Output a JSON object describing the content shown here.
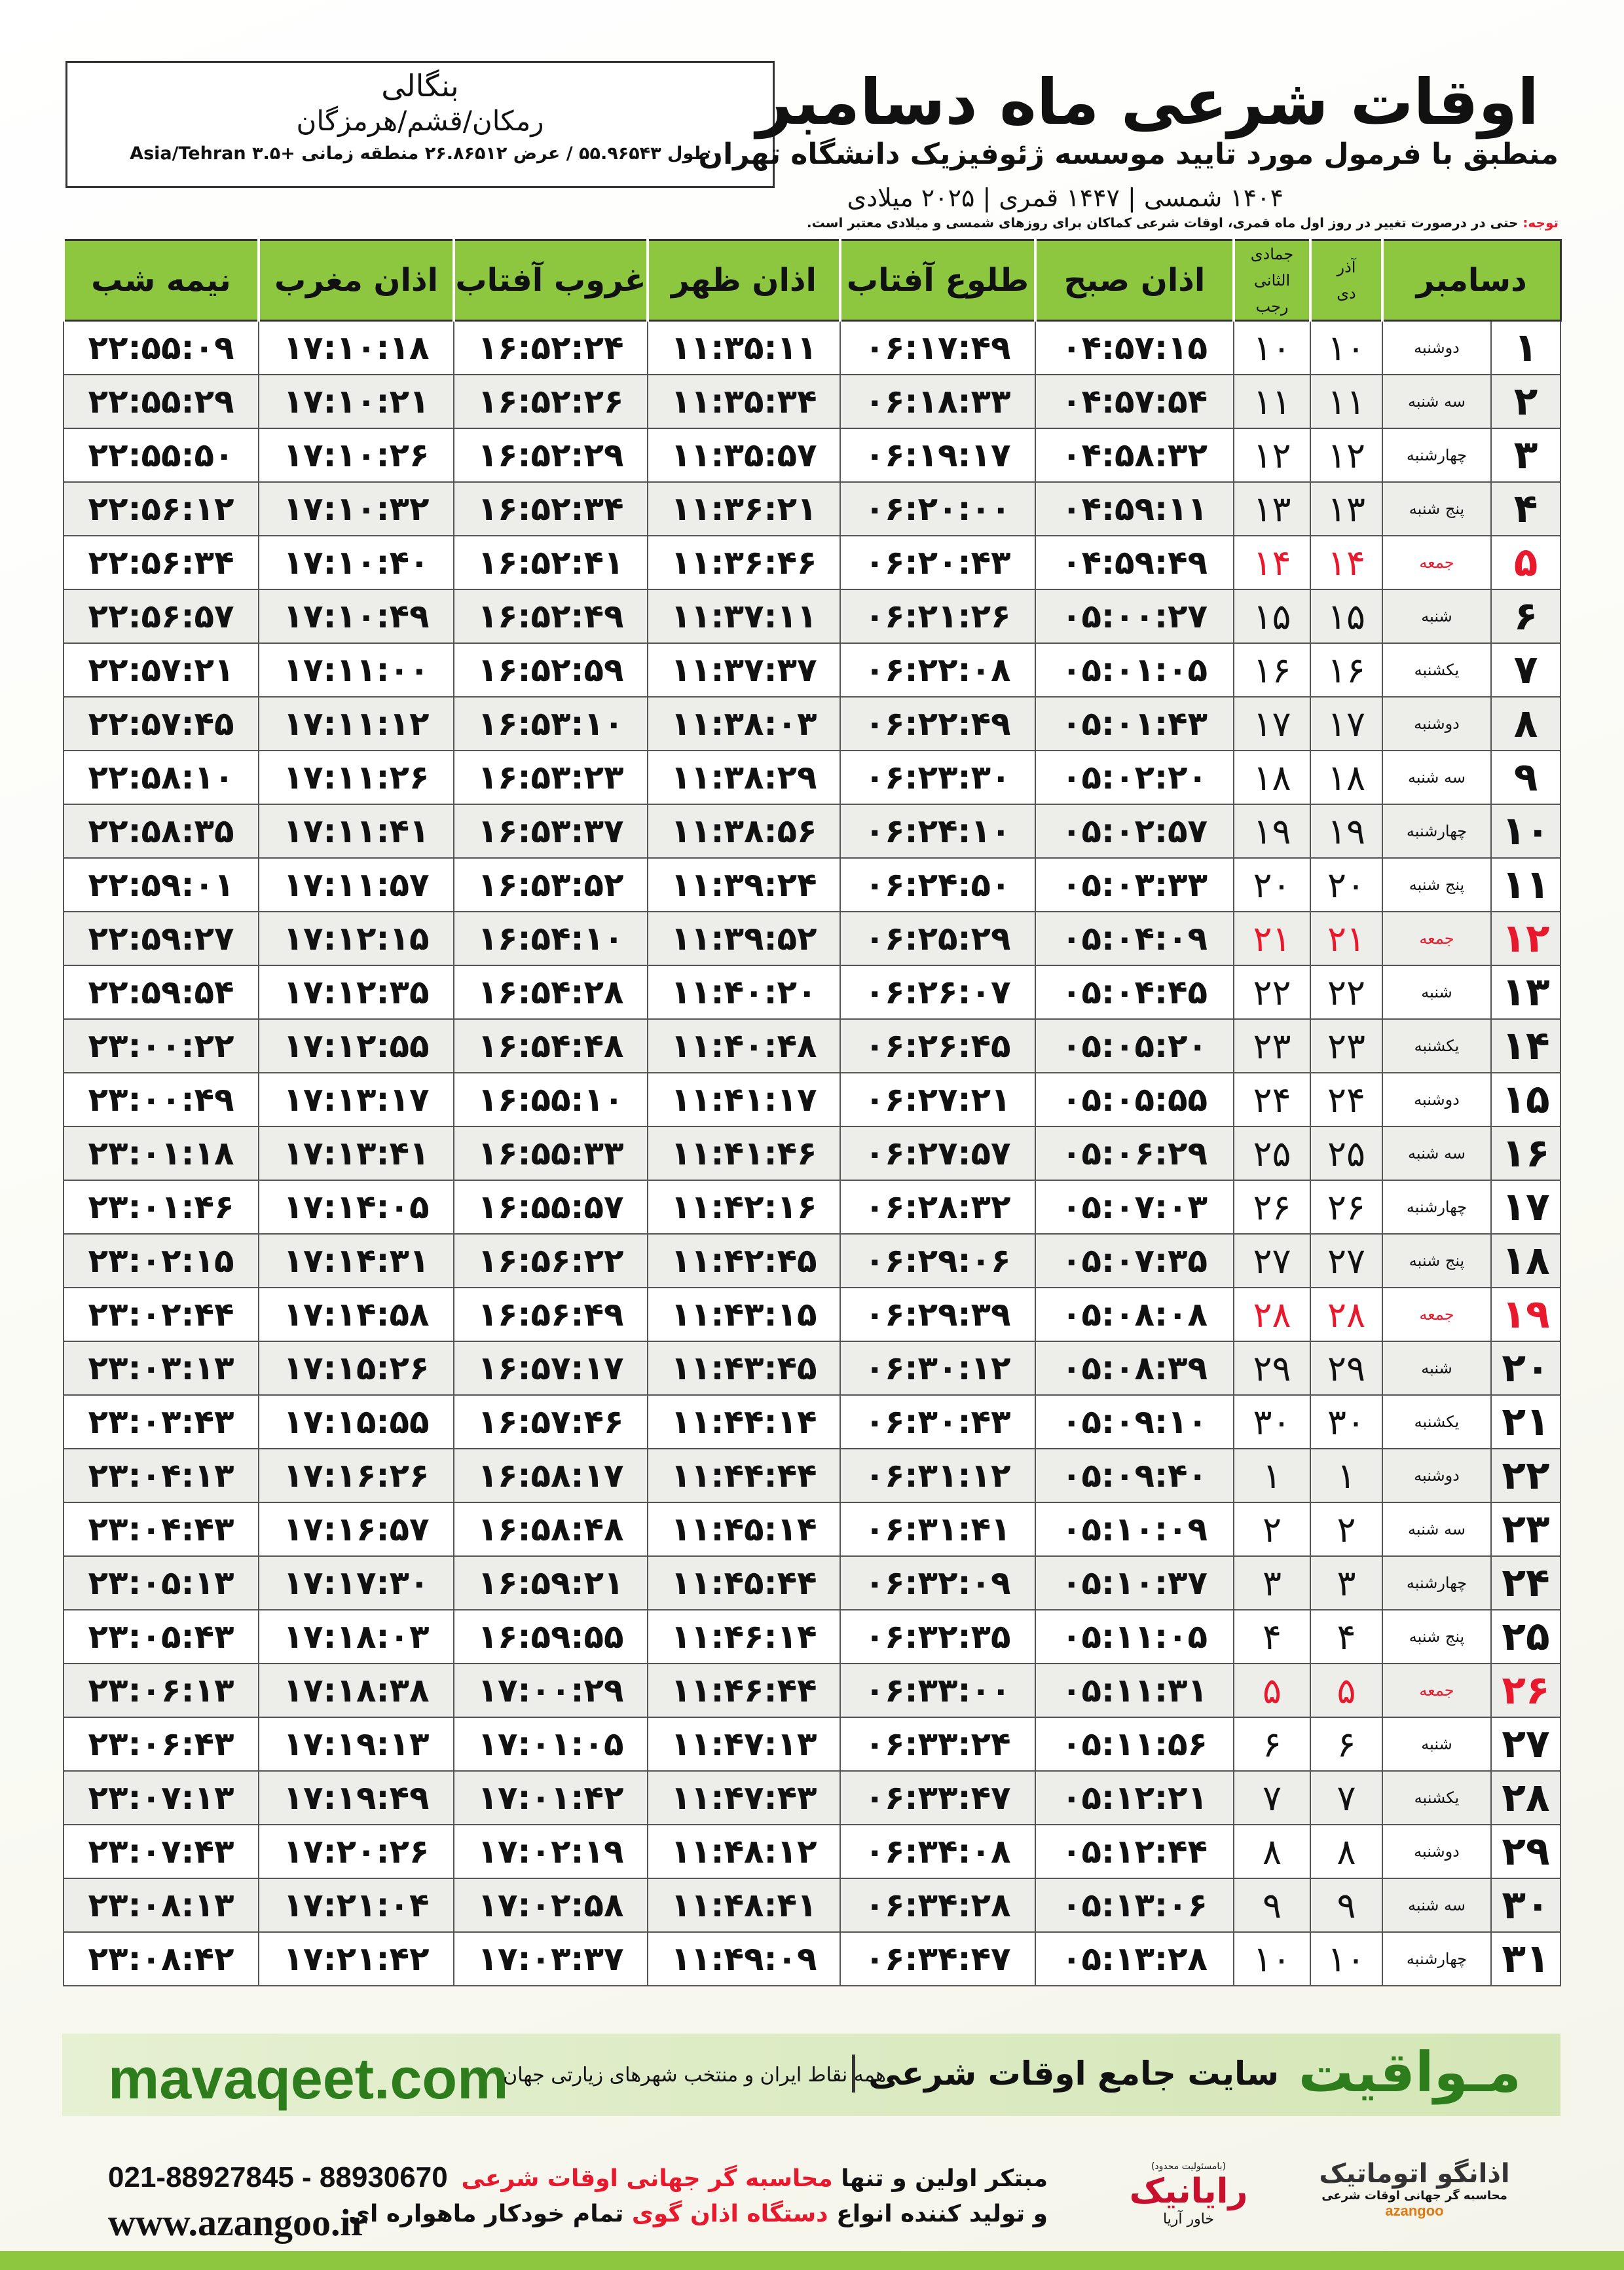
{
  "location": {
    "name": "بنگالی",
    "region": "رمکان/قشم/هرمزگان",
    "coords": "طول ۵۵.۹۶۵۴۳ / عرض ۲۶.۸۶۵۱۲ منطقه زمانی +۳.۵ Asia/Tehran"
  },
  "header": {
    "title": "اوقات شرعی ماه دسامبر",
    "subtitle": "منطبق با فرمول مورد تایید موسسه ژئوفیزیک دانشگاه تهران",
    "dates": "۱۴۰۴ شمسی | ۱۴۴۷ قمری | ۲۰۲۵ میلادی"
  },
  "note": {
    "label": "توجه:",
    "text": "حتی در درصورت تغییر در روز اول ماه قمری، اوقات شرعی کماکان برای روزهای شمسی و میلادی معتبر است."
  },
  "table": {
    "columns": {
      "month": "دسامبر",
      "hijri_top": [
        "آذر",
        "جمادی الثانی"
      ],
      "hijri_bottom": [
        "دی",
        "رجب"
      ],
      "times": [
        "اذان صبح",
        "طلوع آفتاب",
        "اذان ظهر",
        "غروب آفتاب",
        "اذان مغرب",
        "نیمه شب"
      ]
    },
    "holiday_color": "#e8192c",
    "rows": [
      {
        "day": "۱",
        "weekday": "دوشنبه",
        "dey": "۱۰",
        "rajab": "۱۰",
        "times": [
          "۰۴:۵۷:۱۵",
          "۰۶:۱۷:۴۹",
          "۱۱:۳۵:۱۱",
          "۱۶:۵۲:۲۴",
          "۱۷:۱۰:۱۸",
          "۲۲:۵۵:۰۹"
        ],
        "holiday": false
      },
      {
        "day": "۲",
        "weekday": "سه شنبه",
        "dey": "۱۱",
        "rajab": "۱۱",
        "times": [
          "۰۴:۵۷:۵۴",
          "۰۶:۱۸:۳۳",
          "۱۱:۳۵:۳۴",
          "۱۶:۵۲:۲۶",
          "۱۷:۱۰:۲۱",
          "۲۲:۵۵:۲۹"
        ],
        "holiday": false
      },
      {
        "day": "۳",
        "weekday": "چهارشنبه",
        "dey": "۱۲",
        "rajab": "۱۲",
        "times": [
          "۰۴:۵۸:۳۲",
          "۰۶:۱۹:۱۷",
          "۱۱:۳۵:۵۷",
          "۱۶:۵۲:۲۹",
          "۱۷:۱۰:۲۶",
          "۲۲:۵۵:۵۰"
        ],
        "holiday": false
      },
      {
        "day": "۴",
        "weekday": "پنج شنبه",
        "dey": "۱۳",
        "rajab": "۱۳",
        "times": [
          "۰۴:۵۹:۱۱",
          "۰۶:۲۰:۰۰",
          "۱۱:۳۶:۲۱",
          "۱۶:۵۲:۳۴",
          "۱۷:۱۰:۳۲",
          "۲۲:۵۶:۱۲"
        ],
        "holiday": false
      },
      {
        "day": "۵",
        "weekday": "جمعه",
        "dey": "۱۴",
        "rajab": "۱۴",
        "times": [
          "۰۴:۵۹:۴۹",
          "۰۶:۲۰:۴۳",
          "۱۱:۳۶:۴۶",
          "۱۶:۵۲:۴۱",
          "۱۷:۱۰:۴۰",
          "۲۲:۵۶:۳۴"
        ],
        "holiday": true
      },
      {
        "day": "۶",
        "weekday": "شنبه",
        "dey": "۱۵",
        "rajab": "۱۵",
        "times": [
          "۰۵:۰۰:۲۷",
          "۰۶:۲۱:۲۶",
          "۱۱:۳۷:۱۱",
          "۱۶:۵۲:۴۹",
          "۱۷:۱۰:۴۹",
          "۲۲:۵۶:۵۷"
        ],
        "holiday": false
      },
      {
        "day": "۷",
        "weekday": "یکشنبه",
        "dey": "۱۶",
        "rajab": "۱۶",
        "times": [
          "۰۵:۰۱:۰۵",
          "۰۶:۲۲:۰۸",
          "۱۱:۳۷:۳۷",
          "۱۶:۵۲:۵۹",
          "۱۷:۱۱:۰۰",
          "۲۲:۵۷:۲۱"
        ],
        "holiday": false
      },
      {
        "day": "۸",
        "weekday": "دوشنبه",
        "dey": "۱۷",
        "rajab": "۱۷",
        "times": [
          "۰۵:۰۱:۴۳",
          "۰۶:۲۲:۴۹",
          "۱۱:۳۸:۰۳",
          "۱۶:۵۳:۱۰",
          "۱۷:۱۱:۱۲",
          "۲۲:۵۷:۴۵"
        ],
        "holiday": false
      },
      {
        "day": "۹",
        "weekday": "سه شنبه",
        "dey": "۱۸",
        "rajab": "۱۸",
        "times": [
          "۰۵:۰۲:۲۰",
          "۰۶:۲۳:۳۰",
          "۱۱:۳۸:۲۹",
          "۱۶:۵۳:۲۳",
          "۱۷:۱۱:۲۶",
          "۲۲:۵۸:۱۰"
        ],
        "holiday": false
      },
      {
        "day": "۱۰",
        "weekday": "چهارشنبه",
        "dey": "۱۹",
        "rajab": "۱۹",
        "times": [
          "۰۵:۰۲:۵۷",
          "۰۶:۲۴:۱۰",
          "۱۱:۳۸:۵۶",
          "۱۶:۵۳:۳۷",
          "۱۷:۱۱:۴۱",
          "۲۲:۵۸:۳۵"
        ],
        "holiday": false
      },
      {
        "day": "۱۱",
        "weekday": "پنج شنبه",
        "dey": "۲۰",
        "rajab": "۲۰",
        "times": [
          "۰۵:۰۳:۳۳",
          "۰۶:۲۴:۵۰",
          "۱۱:۳۹:۲۴",
          "۱۶:۵۳:۵۲",
          "۱۷:۱۱:۵۷",
          "۲۲:۵۹:۰۱"
        ],
        "holiday": false
      },
      {
        "day": "۱۲",
        "weekday": "جمعه",
        "dey": "۲۱",
        "rajab": "۲۱",
        "times": [
          "۰۵:۰۴:۰۹",
          "۰۶:۲۵:۲۹",
          "۱۱:۳۹:۵۲",
          "۱۶:۵۴:۱۰",
          "۱۷:۱۲:۱۵",
          "۲۲:۵۹:۲۷"
        ],
        "holiday": true
      },
      {
        "day": "۱۳",
        "weekday": "شنبه",
        "dey": "۲۲",
        "rajab": "۲۲",
        "times": [
          "۰۵:۰۴:۴۵",
          "۰۶:۲۶:۰۷",
          "۱۱:۴۰:۲۰",
          "۱۶:۵۴:۲۸",
          "۱۷:۱۲:۳۵",
          "۲۲:۵۹:۵۴"
        ],
        "holiday": false
      },
      {
        "day": "۱۴",
        "weekday": "یکشنبه",
        "dey": "۲۳",
        "rajab": "۲۳",
        "times": [
          "۰۵:۰۵:۲۰",
          "۰۶:۲۶:۴۵",
          "۱۱:۴۰:۴۸",
          "۱۶:۵۴:۴۸",
          "۱۷:۱۲:۵۵",
          "۲۳:۰۰:۲۲"
        ],
        "holiday": false
      },
      {
        "day": "۱۵",
        "weekday": "دوشنبه",
        "dey": "۲۴",
        "rajab": "۲۴",
        "times": [
          "۰۵:۰۵:۵۵",
          "۰۶:۲۷:۲۱",
          "۱۱:۴۱:۱۷",
          "۱۶:۵۵:۱۰",
          "۱۷:۱۳:۱۷",
          "۲۳:۰۰:۴۹"
        ],
        "holiday": false
      },
      {
        "day": "۱۶",
        "weekday": "سه شنبه",
        "dey": "۲۵",
        "rajab": "۲۵",
        "times": [
          "۰۵:۰۶:۲۹",
          "۰۶:۲۷:۵۷",
          "۱۱:۴۱:۴۶",
          "۱۶:۵۵:۳۳",
          "۱۷:۱۳:۴۱",
          "۲۳:۰۱:۱۸"
        ],
        "holiday": false
      },
      {
        "day": "۱۷",
        "weekday": "چهارشنبه",
        "dey": "۲۶",
        "rajab": "۲۶",
        "times": [
          "۰۵:۰۷:۰۳",
          "۰۶:۲۸:۳۲",
          "۱۱:۴۲:۱۶",
          "۱۶:۵۵:۵۷",
          "۱۷:۱۴:۰۵",
          "۲۳:۰۱:۴۶"
        ],
        "holiday": false
      },
      {
        "day": "۱۸",
        "weekday": "پنج شنبه",
        "dey": "۲۷",
        "rajab": "۲۷",
        "times": [
          "۰۵:۰۷:۳۵",
          "۰۶:۲۹:۰۶",
          "۱۱:۴۲:۴۵",
          "۱۶:۵۶:۲۲",
          "۱۷:۱۴:۳۱",
          "۲۳:۰۲:۱۵"
        ],
        "holiday": false
      },
      {
        "day": "۱۹",
        "weekday": "جمعه",
        "dey": "۲۸",
        "rajab": "۲۸",
        "times": [
          "۰۵:۰۸:۰۸",
          "۰۶:۲۹:۳۹",
          "۱۱:۴۳:۱۵",
          "۱۶:۵۶:۴۹",
          "۱۷:۱۴:۵۸",
          "۲۳:۰۲:۴۴"
        ],
        "holiday": true
      },
      {
        "day": "۲۰",
        "weekday": "شنبه",
        "dey": "۲۹",
        "rajab": "۲۹",
        "times": [
          "۰۵:۰۸:۳۹",
          "۰۶:۳۰:۱۲",
          "۱۱:۴۳:۴۵",
          "۱۶:۵۷:۱۷",
          "۱۷:۱۵:۲۶",
          "۲۳:۰۳:۱۳"
        ],
        "holiday": false
      },
      {
        "day": "۲۱",
        "weekday": "یکشنبه",
        "dey": "۳۰",
        "rajab": "۳۰",
        "times": [
          "۰۵:۰۹:۱۰",
          "۰۶:۳۰:۴۳",
          "۱۱:۴۴:۱۴",
          "۱۶:۵۷:۴۶",
          "۱۷:۱۵:۵۵",
          "۲۳:۰۳:۴۳"
        ],
        "holiday": false
      },
      {
        "day": "۲۲",
        "weekday": "دوشنبه",
        "dey": "۱",
        "rajab": "۱",
        "times": [
          "۰۵:۰۹:۴۰",
          "۰۶:۳۱:۱۲",
          "۱۱:۴۴:۴۴",
          "۱۶:۵۸:۱۷",
          "۱۷:۱۶:۲۶",
          "۲۳:۰۴:۱۳"
        ],
        "holiday": false
      },
      {
        "day": "۲۳",
        "weekday": "سه شنبه",
        "dey": "۲",
        "rajab": "۲",
        "times": [
          "۰۵:۱۰:۰۹",
          "۰۶:۳۱:۴۱",
          "۱۱:۴۵:۱۴",
          "۱۶:۵۸:۴۸",
          "۱۷:۱۶:۵۷",
          "۲۳:۰۴:۴۳"
        ],
        "holiday": false
      },
      {
        "day": "۲۴",
        "weekday": "چهارشنبه",
        "dey": "۳",
        "rajab": "۳",
        "times": [
          "۰۵:۱۰:۳۷",
          "۰۶:۳۲:۰۹",
          "۱۱:۴۵:۴۴",
          "۱۶:۵۹:۲۱",
          "۱۷:۱۷:۳۰",
          "۲۳:۰۵:۱۳"
        ],
        "holiday": false
      },
      {
        "day": "۲۵",
        "weekday": "پنج شنبه",
        "dey": "۴",
        "rajab": "۴",
        "times": [
          "۰۵:۱۱:۰۵",
          "۰۶:۳۲:۳۵",
          "۱۱:۴۶:۱۴",
          "۱۶:۵۹:۵۵",
          "۱۷:۱۸:۰۳",
          "۲۳:۰۵:۴۳"
        ],
        "holiday": false
      },
      {
        "day": "۲۶",
        "weekday": "جمعه",
        "dey": "۵",
        "rajab": "۵",
        "times": [
          "۰۵:۱۱:۳۱",
          "۰۶:۳۳:۰۰",
          "۱۱:۴۶:۴۴",
          "۱۷:۰۰:۲۹",
          "۱۷:۱۸:۳۸",
          "۲۳:۰۶:۱۳"
        ],
        "holiday": true
      },
      {
        "day": "۲۷",
        "weekday": "شنبه",
        "dey": "۶",
        "rajab": "۶",
        "times": [
          "۰۵:۱۱:۵۶",
          "۰۶:۳۳:۲۴",
          "۱۱:۴۷:۱۳",
          "۱۷:۰۱:۰۵",
          "۱۷:۱۹:۱۳",
          "۲۳:۰۶:۴۳"
        ],
        "holiday": false
      },
      {
        "day": "۲۸",
        "weekday": "یکشنبه",
        "dey": "۷",
        "rajab": "۷",
        "times": [
          "۰۵:۱۲:۲۱",
          "۰۶:۳۳:۴۷",
          "۱۱:۴۷:۴۳",
          "۱۷:۰۱:۴۲",
          "۱۷:۱۹:۴۹",
          "۲۳:۰۷:۱۳"
        ],
        "holiday": false
      },
      {
        "day": "۲۹",
        "weekday": "دوشنبه",
        "dey": "۸",
        "rajab": "۸",
        "times": [
          "۰۵:۱۲:۴۴",
          "۰۶:۳۴:۰۸",
          "۱۱:۴۸:۱۲",
          "۱۷:۰۲:۱۹",
          "۱۷:۲۰:۲۶",
          "۲۳:۰۷:۴۳"
        ],
        "holiday": false
      },
      {
        "day": "۳۰",
        "weekday": "سه شنبه",
        "dey": "۹",
        "rajab": "۹",
        "times": [
          "۰۵:۱۳:۰۶",
          "۰۶:۳۴:۲۸",
          "۱۱:۴۸:۴۱",
          "۱۷:۰۲:۵۸",
          "۱۷:۲۱:۰۴",
          "۲۳:۰۸:۱۳"
        ],
        "holiday": false
      },
      {
        "day": "۳۱",
        "weekday": "چهارشنبه",
        "dey": "۱۰",
        "rajab": "۱۰",
        "times": [
          "۰۵:۱۳:۲۸",
          "۰۶:۳۴:۴۷",
          "۱۱:۴۹:۰۹",
          "۱۷:۰۳:۳۷",
          "۱۷:۲۱:۴۲",
          "۲۳:۰۸:۴۲"
        ],
        "holiday": false
      }
    ]
  },
  "banner": {
    "site": "mavaqeet.com",
    "logo": "مـواقیت",
    "slogan": "سایت جامع اوقات شرعی",
    "scope": "همه نقاط ایران و منتخب شهرهای زیارتی جهان"
  },
  "footer": {
    "phone": "021-88927845 - 88930670",
    "url": "www.azangoo.ir",
    "line1": [
      "مبتکر اولین و تنها",
      "محاسبه گر جهانی اوقات شرعی"
    ],
    "line2": [
      "و تولید کننده انواع",
      "دستگاه اذان گوی",
      "تمام خودکار ماهواره ای"
    ],
    "company1": {
      "name": "رایانیک",
      "sub": "خاور آریا",
      "note": "(بامسئولیت محدود)"
    },
    "company2": {
      "name": "اذانگو اتوماتیک",
      "sub": "محاسبه گر جهانی اوقات شرعی",
      "brand": "azangoo"
    }
  }
}
